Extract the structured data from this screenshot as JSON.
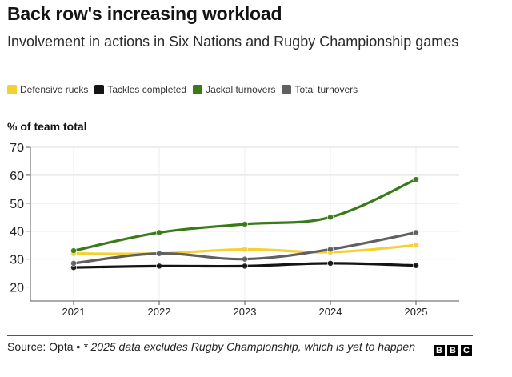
{
  "title": "Back row's increasing workload",
  "subtitle": "Involvement in actions in Six Nations and Rugby Championship games",
  "footer": {
    "source": "Source: Opta •",
    "note": "* 2025 data excludes Rugby Championship, which is yet to happen"
  },
  "logo": [
    "B",
    "B",
    "C"
  ],
  "chart_data": {
    "type": "line",
    "ylabel": "% of team total",
    "xlabel": "",
    "categories": [
      "2021",
      "2022",
      "2023",
      "2024",
      "2025"
    ],
    "ylim": [
      15,
      70
    ],
    "yticks": [
      20,
      30,
      40,
      50,
      60,
      70
    ],
    "grid": true,
    "legend_position": "top",
    "series": [
      {
        "name": "Defensive rucks",
        "color": "#f5d033",
        "values": [
          32,
          32,
          33.5,
          32.5,
          35
        ]
      },
      {
        "name": "Tackles completed",
        "color": "#141414",
        "values": [
          27,
          27.5,
          27.5,
          28.5,
          27.7
        ]
      },
      {
        "name": "Jackal turnovers",
        "color": "#3a7b19",
        "values": [
          33,
          39.5,
          42.5,
          45,
          58.5
        ]
      },
      {
        "name": "Total turnovers",
        "color": "#606060",
        "values": [
          28.5,
          32,
          30,
          33.5,
          39.5
        ]
      }
    ]
  }
}
